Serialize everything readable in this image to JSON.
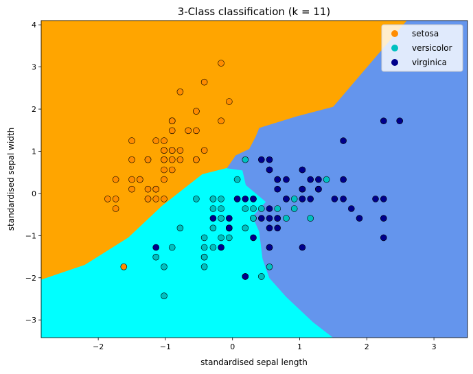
{
  "chart_data": {
    "type": "scatter",
    "title": "3-Class classification (k = 11)",
    "xlabel": "standardised sepal length",
    "ylabel": "standardised sepal width",
    "xlim": [
      -2.85,
      3.5
    ],
    "ylim": [
      -3.42,
      4.1
    ],
    "xticks": [
      -2,
      -1,
      0,
      1,
      2,
      3
    ],
    "yticks": [
      -3,
      -2,
      -1,
      0,
      1,
      2,
      3,
      4
    ],
    "legend_position": "top-right",
    "regions": [
      {
        "class": "setosa",
        "color": "#ffa500",
        "boundary": [
          [
            -2.85,
            4.1
          ],
          [
            2.6,
            4.1
          ],
          [
            1.5,
            2.05
          ],
          [
            0.95,
            1.82
          ],
          [
            0.4,
            1.55
          ],
          [
            0.35,
            1.35
          ],
          [
            0.25,
            1.05
          ],
          [
            0.05,
            0.9
          ],
          [
            -0.08,
            0.6
          ],
          [
            -0.45,
            0.45
          ],
          [
            -1.05,
            -0.3
          ],
          [
            -1.55,
            -1.05
          ],
          [
            -2.2,
            -1.7
          ],
          [
            -2.85,
            -2.05
          ]
        ]
      },
      {
        "class": "versicolor",
        "color": "#00ffff",
        "boundary": [
          [
            -2.85,
            -3.42
          ],
          [
            1.5,
            -3.42
          ],
          [
            1.2,
            -3.05
          ],
          [
            0.8,
            -2.45
          ],
          [
            0.55,
            -2.0
          ],
          [
            0.45,
            -1.55
          ],
          [
            0.4,
            -0.9
          ],
          [
            0.3,
            -0.55
          ],
          [
            0.5,
            -0.2
          ],
          [
            0.2,
            0.2
          ],
          [
            0.15,
            0.55
          ],
          [
            -0.08,
            0.6
          ],
          [
            -0.45,
            0.45
          ],
          [
            -1.05,
            -0.3
          ],
          [
            -1.55,
            -1.05
          ],
          [
            -2.2,
            -1.7
          ],
          [
            -2.85,
            -2.05
          ]
        ]
      },
      {
        "class": "virginica",
        "color": "#6495ed",
        "boundary": [
          [
            2.6,
            4.1
          ],
          [
            3.5,
            4.1
          ],
          [
            3.5,
            -3.42
          ],
          [
            1.5,
            -3.42
          ],
          [
            1.2,
            -3.05
          ],
          [
            0.8,
            -2.45
          ],
          [
            0.55,
            -2.0
          ],
          [
            0.45,
            -1.55
          ],
          [
            0.4,
            -0.9
          ],
          [
            0.3,
            -0.55
          ],
          [
            0.5,
            -0.2
          ],
          [
            0.2,
            0.2
          ],
          [
            0.15,
            0.55
          ],
          [
            -0.08,
            0.6
          ],
          [
            0.05,
            0.9
          ],
          [
            0.25,
            1.05
          ],
          [
            0.35,
            1.35
          ],
          [
            0.4,
            1.55
          ],
          [
            0.95,
            1.82
          ],
          [
            1.5,
            2.05
          ]
        ]
      }
    ],
    "series": [
      {
        "name": "setosa",
        "color": "#ff8c00",
        "points": [
          [
            -0.9,
            1.02
          ],
          [
            -1.14,
            -0.13
          ],
          [
            -1.38,
            0.33
          ],
          [
            -1.5,
            0.1
          ],
          [
            -1.02,
            1.25
          ],
          [
            -0.54,
            1.95
          ],
          [
            -1.5,
            0.8
          ],
          [
            -1.02,
            0.8
          ],
          [
            -1.74,
            -0.36
          ],
          [
            -1.14,
            0.1
          ],
          [
            -0.54,
            1.49
          ],
          [
            -1.26,
            0.8
          ],
          [
            -1.26,
            -0.13
          ],
          [
            -1.86,
            -0.13
          ],
          [
            -0.05,
            2.18
          ],
          [
            -0.17,
            3.09
          ],
          [
            -0.54,
            1.95
          ],
          [
            -0.9,
            1.02
          ],
          [
            -0.17,
            1.72
          ],
          [
            -0.9,
            1.72
          ],
          [
            -0.54,
            0.8
          ],
          [
            -0.9,
            1.49
          ],
          [
            -1.5,
            1.25
          ],
          [
            -0.9,
            0.56
          ],
          [
            -1.26,
            0.8
          ],
          [
            -1.02,
            -0.13
          ],
          [
            -1.02,
            0.8
          ],
          [
            -0.78,
            1.02
          ],
          [
            -0.78,
            0.8
          ],
          [
            -1.38,
            0.33
          ],
          [
            -1.26,
            0.1
          ],
          [
            -0.54,
            0.8
          ],
          [
            -0.78,
            2.41
          ],
          [
            -0.42,
            2.64
          ],
          [
            -1.14,
            0.1
          ],
          [
            -1.02,
            0.33
          ],
          [
            -0.42,
            1.02
          ],
          [
            -1.14,
            1.25
          ],
          [
            -1.74,
            -0.13
          ],
          [
            -0.9,
            0.8
          ],
          [
            -1.02,
            1.02
          ],
          [
            -1.62,
            -1.74
          ],
          [
            -1.74,
            0.33
          ],
          [
            -1.02,
            1.02
          ],
          [
            -0.9,
            1.72
          ],
          [
            -1.26,
            -0.13
          ],
          [
            -0.9,
            1.72
          ],
          [
            -1.5,
            0.33
          ],
          [
            -0.66,
            1.49
          ],
          [
            -1.02,
            0.56
          ]
        ]
      },
      {
        "name": "versicolor",
        "color": "#00c0c0",
        "points": [
          [
            1.4,
            0.33
          ],
          [
            0.67,
            0.33
          ],
          [
            1.28,
            0.1
          ],
          [
            -0.42,
            -1.74
          ],
          [
            0.8,
            -0.59
          ],
          [
            -0.17,
            -0.59
          ],
          [
            0.55,
            0.56
          ],
          [
            -1.14,
            -1.51
          ],
          [
            0.92,
            -0.36
          ],
          [
            -0.78,
            -0.82
          ],
          [
            -1.02,
            -2.43
          ],
          [
            0.07,
            -0.13
          ],
          [
            0.19,
            -1.97
          ],
          [
            0.31,
            -0.36
          ],
          [
            -0.29,
            -0.36
          ],
          [
            1.04,
            0.1
          ],
          [
            -0.29,
            -0.13
          ],
          [
            -0.05,
            -0.82
          ],
          [
            0.43,
            -1.97
          ],
          [
            -0.29,
            -1.28
          ],
          [
            0.07,
            0.33
          ],
          [
            0.31,
            -0.59
          ],
          [
            0.55,
            -1.28
          ],
          [
            0.31,
            -0.59
          ],
          [
            0.67,
            -0.36
          ],
          [
            0.92,
            -0.13
          ],
          [
            1.16,
            -0.59
          ],
          [
            1.04,
            -0.13
          ],
          [
            0.19,
            -0.36
          ],
          [
            -0.17,
            -1.05
          ],
          [
            -0.42,
            -1.51
          ],
          [
            -0.42,
            -1.51
          ],
          [
            -0.05,
            -0.82
          ],
          [
            0.19,
            -0.82
          ],
          [
            -0.54,
            -0.13
          ],
          [
            0.19,
            0.8
          ],
          [
            1.04,
            0.1
          ],
          [
            0.55,
            -1.74
          ],
          [
            -0.29,
            -0.13
          ],
          [
            -0.42,
            -1.28
          ],
          [
            -0.42,
            -1.05
          ],
          [
            0.31,
            -0.13
          ],
          [
            -0.05,
            -1.05
          ],
          [
            -1.02,
            -1.74
          ],
          [
            -0.29,
            -0.82
          ],
          [
            -0.17,
            -0.13
          ],
          [
            -0.17,
            -0.36
          ],
          [
            0.43,
            -0.36
          ],
          [
            -0.9,
            -1.28
          ],
          [
            -0.17,
            -0.59
          ]
        ]
      },
      {
        "name": "virginica",
        "color": "#00008b",
        "points": [
          [
            0.55,
            0.56
          ],
          [
            -0.05,
            -0.82
          ],
          [
            1.52,
            -0.13
          ],
          [
            0.55,
            -0.36
          ],
          [
            0.8,
            -0.13
          ],
          [
            2.13,
            -0.13
          ],
          [
            -1.14,
            -1.28
          ],
          [
            1.77,
            -0.36
          ],
          [
            1.04,
            -1.28
          ],
          [
            1.65,
            1.25
          ],
          [
            0.8,
            0.33
          ],
          [
            0.67,
            -0.82
          ],
          [
            1.16,
            -0.13
          ],
          [
            -0.17,
            -1.28
          ],
          [
            -0.05,
            -0.59
          ],
          [
            0.67,
            0.33
          ],
          [
            0.8,
            -0.13
          ],
          [
            2.25,
            1.72
          ],
          [
            2.25,
            -1.05
          ],
          [
            0.19,
            -1.97
          ],
          [
            1.28,
            0.33
          ],
          [
            -0.29,
            -0.59
          ],
          [
            2.25,
            -0.59
          ],
          [
            0.55,
            -0.82
          ],
          [
            1.04,
            0.56
          ],
          [
            1.65,
            0.33
          ],
          [
            0.43,
            -0.59
          ],
          [
            0.31,
            -0.13
          ],
          [
            0.67,
            -0.59
          ],
          [
            1.65,
            -0.13
          ],
          [
            1.89,
            -0.59
          ],
          [
            2.49,
            1.72
          ],
          [
            0.67,
            -0.59
          ],
          [
            0.55,
            -0.59
          ],
          [
            0.31,
            -1.05
          ],
          [
            2.25,
            -0.13
          ],
          [
            0.55,
            0.8
          ],
          [
            0.67,
            0.1
          ],
          [
            0.19,
            -0.13
          ],
          [
            1.28,
            0.1
          ],
          [
            1.04,
            0.1
          ],
          [
            1.28,
            0.1
          ],
          [
            -0.05,
            -0.82
          ],
          [
            1.16,
            0.33
          ],
          [
            1.04,
            0.56
          ],
          [
            1.04,
            -0.13
          ],
          [
            0.55,
            -1.28
          ],
          [
            0.8,
            -0.13
          ],
          [
            0.43,
            0.8
          ],
          [
            0.07,
            -0.13
          ]
        ]
      }
    ]
  }
}
